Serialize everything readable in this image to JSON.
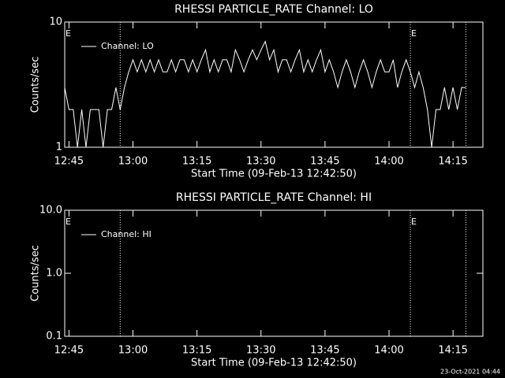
{
  "chart_data": [
    {
      "type": "line",
      "title": "RHESSI PARTICLE_RATE Channel: LO",
      "ylabel": "Counts/sec",
      "xlabel": "Start Time (09-Feb-13 12:42:50)",
      "ylog": true,
      "ylim": [
        1,
        10
      ],
      "yticks": [
        1,
        10
      ],
      "xlim": [
        "12:44",
        "14:22"
      ],
      "xticks": [
        "12:45",
        "13:00",
        "13:15",
        "13:30",
        "13:45",
        "14:00",
        "14:15"
      ],
      "legend": "upper left",
      "event_lines": [
        "12:57",
        "14:05",
        "14:18"
      ],
      "annotations": [
        {
          "text": "E",
          "x": "12:44"
        },
        {
          "text": "E",
          "x": "14:05"
        }
      ],
      "x": [
        "12:44",
        "12:45",
        "12:46",
        "12:47",
        "12:48",
        "12:49",
        "12:50",
        "12:51",
        "12:52",
        "12:53",
        "12:54",
        "12:55",
        "12:56",
        "12:57",
        "12:58",
        "12:59",
        "13:00",
        "13:01",
        "13:02",
        "13:03",
        "13:04",
        "13:05",
        "13:06",
        "13:07",
        "13:08",
        "13:09",
        "13:10",
        "13:11",
        "13:12",
        "13:13",
        "13:14",
        "13:15",
        "13:16",
        "13:17",
        "13:18",
        "13:19",
        "13:20",
        "13:21",
        "13:22",
        "13:23",
        "13:24",
        "13:25",
        "13:26",
        "13:27",
        "13:28",
        "13:29",
        "13:30",
        "13:31",
        "13:32",
        "13:33",
        "13:34",
        "13:35",
        "13:36",
        "13:37",
        "13:38",
        "13:39",
        "13:40",
        "13:41",
        "13:42",
        "13:43",
        "13:44",
        "13:45",
        "13:46",
        "13:47",
        "13:48",
        "13:49",
        "13:50",
        "13:51",
        "13:52",
        "13:53",
        "13:54",
        "13:55",
        "13:56",
        "13:57",
        "13:58",
        "13:59",
        "14:00",
        "14:01",
        "14:02",
        "14:03",
        "14:04",
        "14:05",
        "14:06",
        "14:07",
        "14:08",
        "14:09",
        "14:10",
        "14:11",
        "14:12",
        "14:13",
        "14:14",
        "14:15",
        "14:16",
        "14:17",
        "14:18"
      ],
      "series": [
        {
          "name": "Channel: LO",
          "color": "#ffffff",
          "values": [
            3,
            2,
            2,
            1,
            2,
            1,
            2,
            2,
            2,
            1,
            2,
            2,
            3,
            2,
            3,
            4,
            5,
            4,
            5,
            4,
            5,
            4,
            5,
            4,
            4,
            5,
            4,
            5,
            5,
            4,
            5,
            4,
            5,
            6,
            4,
            5,
            4,
            5,
            5,
            4,
            6,
            5,
            4,
            5,
            6,
            5,
            6,
            7,
            5,
            6,
            4,
            5,
            5,
            4,
            5,
            6,
            4,
            5,
            4,
            5,
            6,
            4,
            5,
            4,
            3,
            4,
            5,
            4,
            3,
            4,
            5,
            4,
            3,
            4,
            5,
            4,
            4,
            5,
            3,
            4,
            5,
            4,
            3,
            4,
            3,
            2,
            1,
            2,
            2,
            3,
            2,
            3,
            2,
            3,
            3
          ]
        }
      ]
    },
    {
      "type": "line",
      "title": "RHESSI PARTICLE_RATE Channel: HI",
      "ylabel": "Counts/sec",
      "xlabel": "Start Time (09-Feb-13 12:42:50)",
      "ylog": true,
      "ylim": [
        0.1,
        10
      ],
      "yticks": [
        0.1,
        {
          "value": 1,
          "label": "1.0"
        },
        {
          "value": 10,
          "label": "10.0"
        }
      ],
      "xlim": [
        "12:44",
        "14:22"
      ],
      "xticks": [
        "12:45",
        "13:00",
        "13:15",
        "13:30",
        "13:45",
        "14:00",
        "14:15"
      ],
      "legend": "upper left",
      "event_lines": [
        "12:57",
        "14:05",
        "14:18"
      ],
      "annotations": [
        {
          "text": "E",
          "x": "12:44"
        },
        {
          "text": "E",
          "x": "14:05"
        }
      ],
      "x": [],
      "series": [
        {
          "name": "Channel: HI",
          "color": "#ffffff",
          "values": []
        }
      ]
    }
  ],
  "timestamp": "23-Oct-2021 04:44"
}
